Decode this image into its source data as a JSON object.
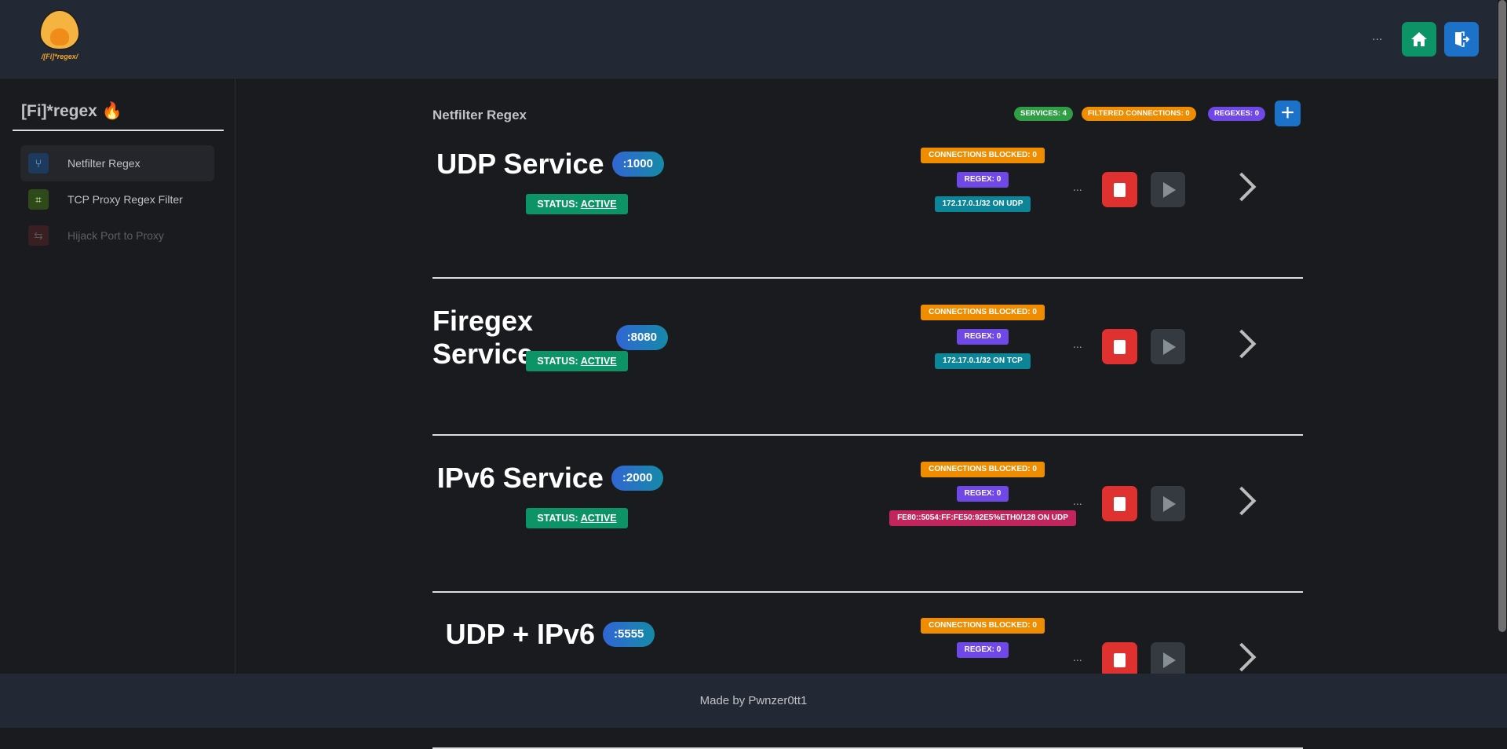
{
  "header": {
    "logo_text": "/[Fi]*regex/",
    "more": "...",
    "home_icon": "home-icon",
    "logout_icon": "logout-icon"
  },
  "sidebar": {
    "title": "[Fi]*regex",
    "title_emoji": "🔥",
    "items": [
      {
        "label": "Netfilter Regex",
        "icon": "git-fork-icon",
        "active": true
      },
      {
        "label": "TCP Proxy Regex Filter",
        "icon": "crop-icon"
      },
      {
        "label": "Hijack Port to Proxy",
        "icon": "split-arrows-icon",
        "disabled": true
      }
    ]
  },
  "main": {
    "title": "Netfilter Regex",
    "stats": {
      "services": "SERVICES: 4",
      "filtered": "FILTERED CONNECTIONS: 0",
      "regexes": "REGEXES: 0"
    },
    "add_label": "+",
    "status_prefix": "STATUS:",
    "services": [
      {
        "name": "UDP Service",
        "port": ":1000",
        "status": "ACTIVE",
        "blocked": "CONNECTIONS BLOCKED: 0",
        "regex": "REGEX: 0",
        "addr": "172.17.0.1/32 ON UDP",
        "addr_color": "#0c8599"
      },
      {
        "name": "Firegex Service",
        "port": ":8080",
        "status": "ACTIVE",
        "blocked": "CONNECTIONS BLOCKED: 0",
        "regex": "REGEX: 0",
        "addr": "172.17.0.1/32 ON TCP",
        "addr_color": "#0c8599"
      },
      {
        "name": "IPv6 Service",
        "port": ":2000",
        "status": "ACTIVE",
        "blocked": "CONNECTIONS BLOCKED: 0",
        "regex": "REGEX: 0",
        "addr": "FE80::5054:FF:FE50:92E5%ETH0/128 ON UDP",
        "addr_color": "#c2255c"
      },
      {
        "name": "UDP + IPv6",
        "port": ":5555",
        "status": "",
        "blocked": "CONNECTIONS BLOCKED: 0",
        "regex": "REGEX: 0",
        "addr": "",
        "addr_color": "#0c8599"
      }
    ],
    "more": "..."
  },
  "footer": {
    "text": "Made by Pwnzer0tt1"
  },
  "colors": {
    "orange": "#f08c00",
    "purple": "#7048e8",
    "green": "#2f9e44",
    "blue": "#1c72c8",
    "red": "#e03131",
    "teal": "#0c9467"
  }
}
